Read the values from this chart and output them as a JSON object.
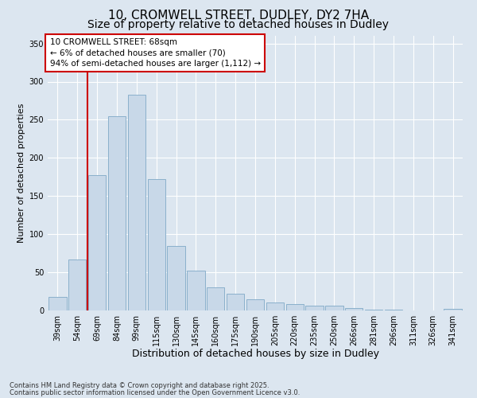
{
  "title_line1": "10, CROMWELL STREET, DUDLEY, DY2 7HA",
  "title_line2": "Size of property relative to detached houses in Dudley",
  "xlabel": "Distribution of detached houses by size in Dudley",
  "ylabel": "Number of detached properties",
  "categories": [
    "39sqm",
    "54sqm",
    "69sqm",
    "84sqm",
    "99sqm",
    "115sqm",
    "130sqm",
    "145sqm",
    "160sqm",
    "175sqm",
    "190sqm",
    "205sqm",
    "220sqm",
    "235sqm",
    "250sqm",
    "266sqm",
    "281sqm",
    "296sqm",
    "311sqm",
    "326sqm",
    "341sqm"
  ],
  "values": [
    18,
    67,
    177,
    255,
    283,
    172,
    85,
    52,
    30,
    22,
    15,
    10,
    8,
    6,
    6,
    3,
    1,
    1,
    0,
    0,
    2
  ],
  "bar_color": "#c8d8e8",
  "bar_edge_color": "#8ab0cc",
  "vline_x": 1.5,
  "vline_color": "#cc0000",
  "annotation_text": "10 CROMWELL STREET: 68sqm\n← 6% of detached houses are smaller (70)\n94% of semi-detached houses are larger (1,112) →",
  "annotation_box_facecolor": "#ffffff",
  "annotation_box_edgecolor": "#cc0000",
  "ylim": [
    0,
    360
  ],
  "yticks": [
    0,
    50,
    100,
    150,
    200,
    250,
    300,
    350
  ],
  "fig_facecolor": "#dce6f0",
  "axes_facecolor": "#dce6f0",
  "grid_color": "#ffffff",
  "footer_line1": "Contains HM Land Registry data © Crown copyright and database right 2025.",
  "footer_line2": "Contains public sector information licensed under the Open Government Licence v3.0.",
  "title1_fontsize": 11,
  "title2_fontsize": 10,
  "xlabel_fontsize": 9,
  "ylabel_fontsize": 8,
  "tick_fontsize": 7,
  "footer_fontsize": 6,
  "annotation_fontsize": 7.5
}
